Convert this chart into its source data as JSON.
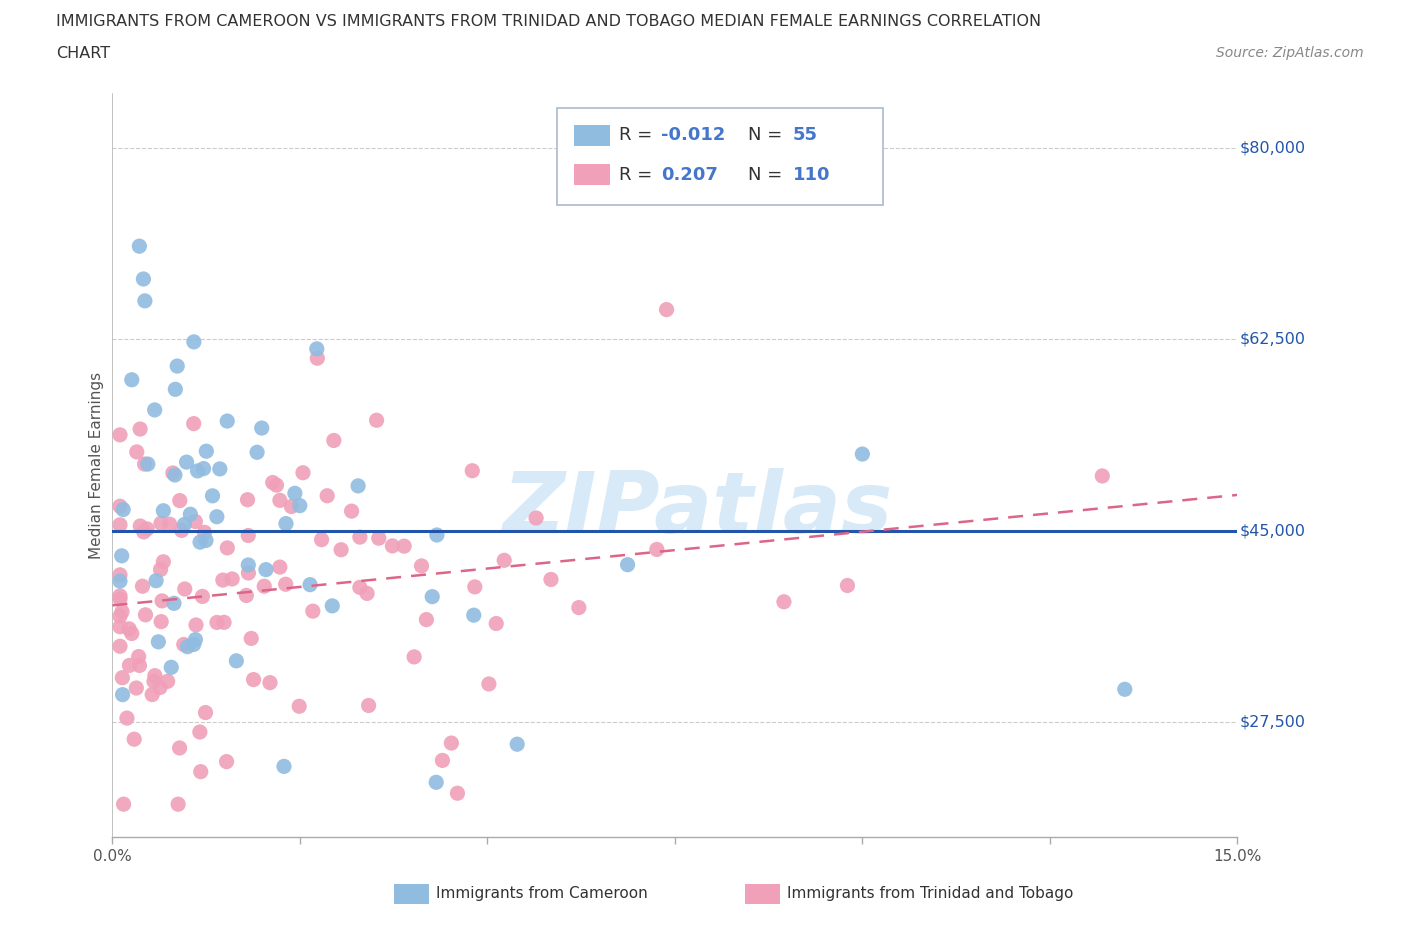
{
  "title_line1": "IMMIGRANTS FROM CAMEROON VS IMMIGRANTS FROM TRINIDAD AND TOBAGO MEDIAN FEMALE EARNINGS CORRELATION",
  "title_line2": "CHART",
  "source": "Source: ZipAtlas.com",
  "ylabel": "Median Female Earnings",
  "xmin": 0.0,
  "xmax": 0.15,
  "ymin": 17000,
  "ymax": 85000,
  "yticks": [
    27500,
    45000,
    62500,
    80000
  ],
  "ytick_labels": [
    "$27,500",
    "$45,000",
    "$62,500",
    "$80,000"
  ],
  "xtick_positions": [
    0.0,
    0.025,
    0.05,
    0.075,
    0.1,
    0.125,
    0.15
  ],
  "xtick_labels": [
    "0.0%",
    "",
    "",
    "",
    "",
    "",
    "15.0%"
  ],
  "cameroon_color": "#90bce0",
  "trinidad_color": "#f0a0b8",
  "cameroon_line_color": "#2255aa",
  "trinidad_line_color": "#dd6688",
  "background_color": "#ffffff",
  "grid_color": "#cccccc",
  "watermark_color": "#d8eaf8",
  "watermark_text": "ZIPatlas",
  "legend_box_color": "#f0f8ff",
  "legend_border_color": "#bbccdd"
}
